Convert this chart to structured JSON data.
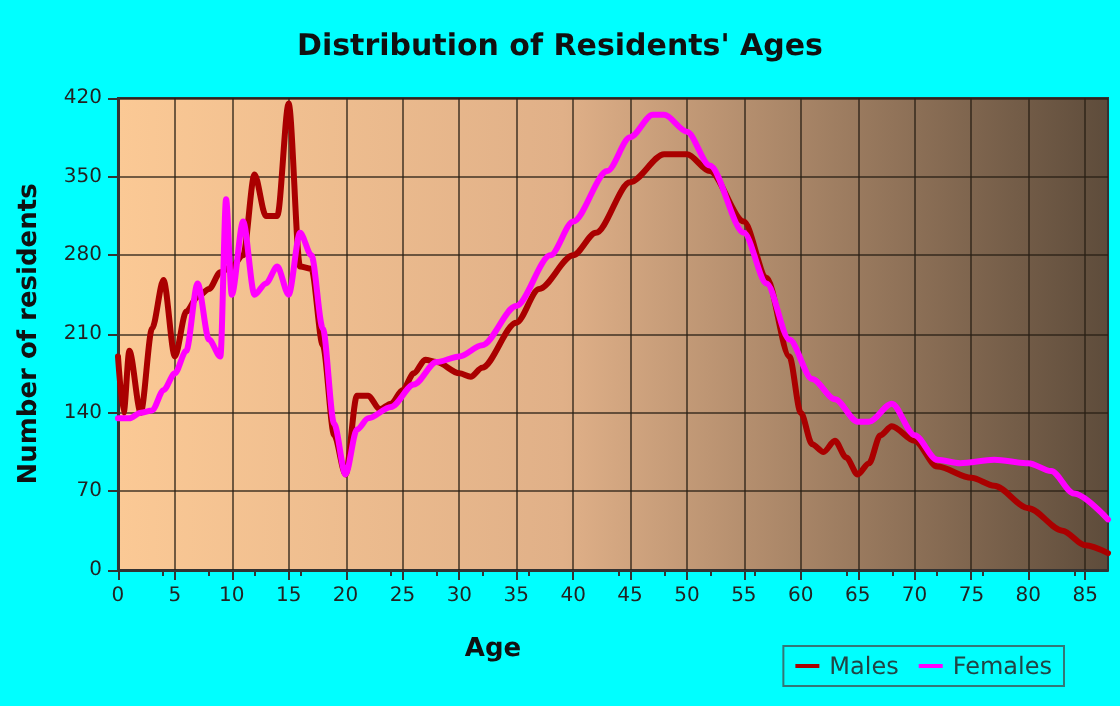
{
  "chart_data": {
    "type": "line",
    "title": "Distribution of Residents' Ages",
    "xlabel": "Age",
    "ylabel": "Number of residents",
    "xlim": [
      0,
      87
    ],
    "xticks": [
      0,
      5,
      10,
      15,
      20,
      25,
      30,
      35,
      40,
      45,
      50,
      55,
      60,
      65,
      70,
      75,
      80,
      85
    ],
    "ylim": [
      0,
      420
    ],
    "yticks": [
      0,
      70,
      140,
      210,
      280,
      350,
      420
    ],
    "grid": true,
    "legend": "bottom right",
    "marker": "none",
    "line_style": "solid",
    "series": [
      {
        "name": "Males",
        "color": "#aa0000",
        "x": [
          0,
          0.5,
          1,
          2,
          3,
          4,
          5,
          6,
          7,
          8,
          9,
          10,
          11,
          12,
          13,
          14,
          15,
          16,
          17,
          18,
          19,
          20,
          21,
          22,
          23,
          24,
          25,
          26,
          27,
          28,
          30,
          31,
          32,
          35,
          37,
          40,
          42,
          45,
          48,
          50,
          52,
          55,
          57,
          59,
          60,
          61,
          62,
          63,
          64,
          65,
          66,
          67,
          68,
          70,
          72,
          75,
          77,
          80,
          83,
          85,
          87
        ],
        "values": [
          190,
          140,
          195,
          140,
          215,
          258,
          190,
          230,
          243,
          250,
          265,
          270,
          280,
          352,
          315,
          315,
          415,
          270,
          268,
          200,
          120,
          85,
          155,
          155,
          143,
          148,
          160,
          175,
          187,
          185,
          175,
          172,
          180,
          220,
          250,
          280,
          300,
          345,
          370,
          370,
          355,
          310,
          260,
          190,
          140,
          112,
          105,
          115,
          100,
          85,
          95,
          120,
          128,
          115,
          92,
          82,
          75,
          55,
          35,
          22,
          15
        ]
      },
      {
        "name": "Females",
        "color": "#ff00ff",
        "x": [
          0,
          1,
          2,
          3,
          4,
          5,
          6,
          7,
          8,
          9,
          9.5,
          10,
          11,
          12,
          13,
          14,
          15,
          16,
          17,
          18,
          19,
          20,
          21,
          22,
          24,
          26,
          28,
          30,
          32,
          35,
          38,
          40,
          43,
          45,
          47,
          48,
          50,
          52,
          55,
          57,
          59,
          61,
          63,
          65,
          66,
          68,
          70,
          72,
          74,
          77,
          80,
          82,
          84,
          87
        ],
        "values": [
          135,
          135,
          140,
          142,
          160,
          175,
          195,
          255,
          205,
          190,
          330,
          245,
          310,
          245,
          255,
          270,
          245,
          300,
          280,
          215,
          130,
          85,
          125,
          135,
          145,
          165,
          185,
          190,
          200,
          235,
          280,
          310,
          355,
          385,
          405,
          405,
          390,
          360,
          300,
          255,
          205,
          170,
          152,
          132,
          132,
          148,
          120,
          98,
          95,
          98,
          95,
          88,
          68,
          45
        ]
      }
    ]
  }
}
